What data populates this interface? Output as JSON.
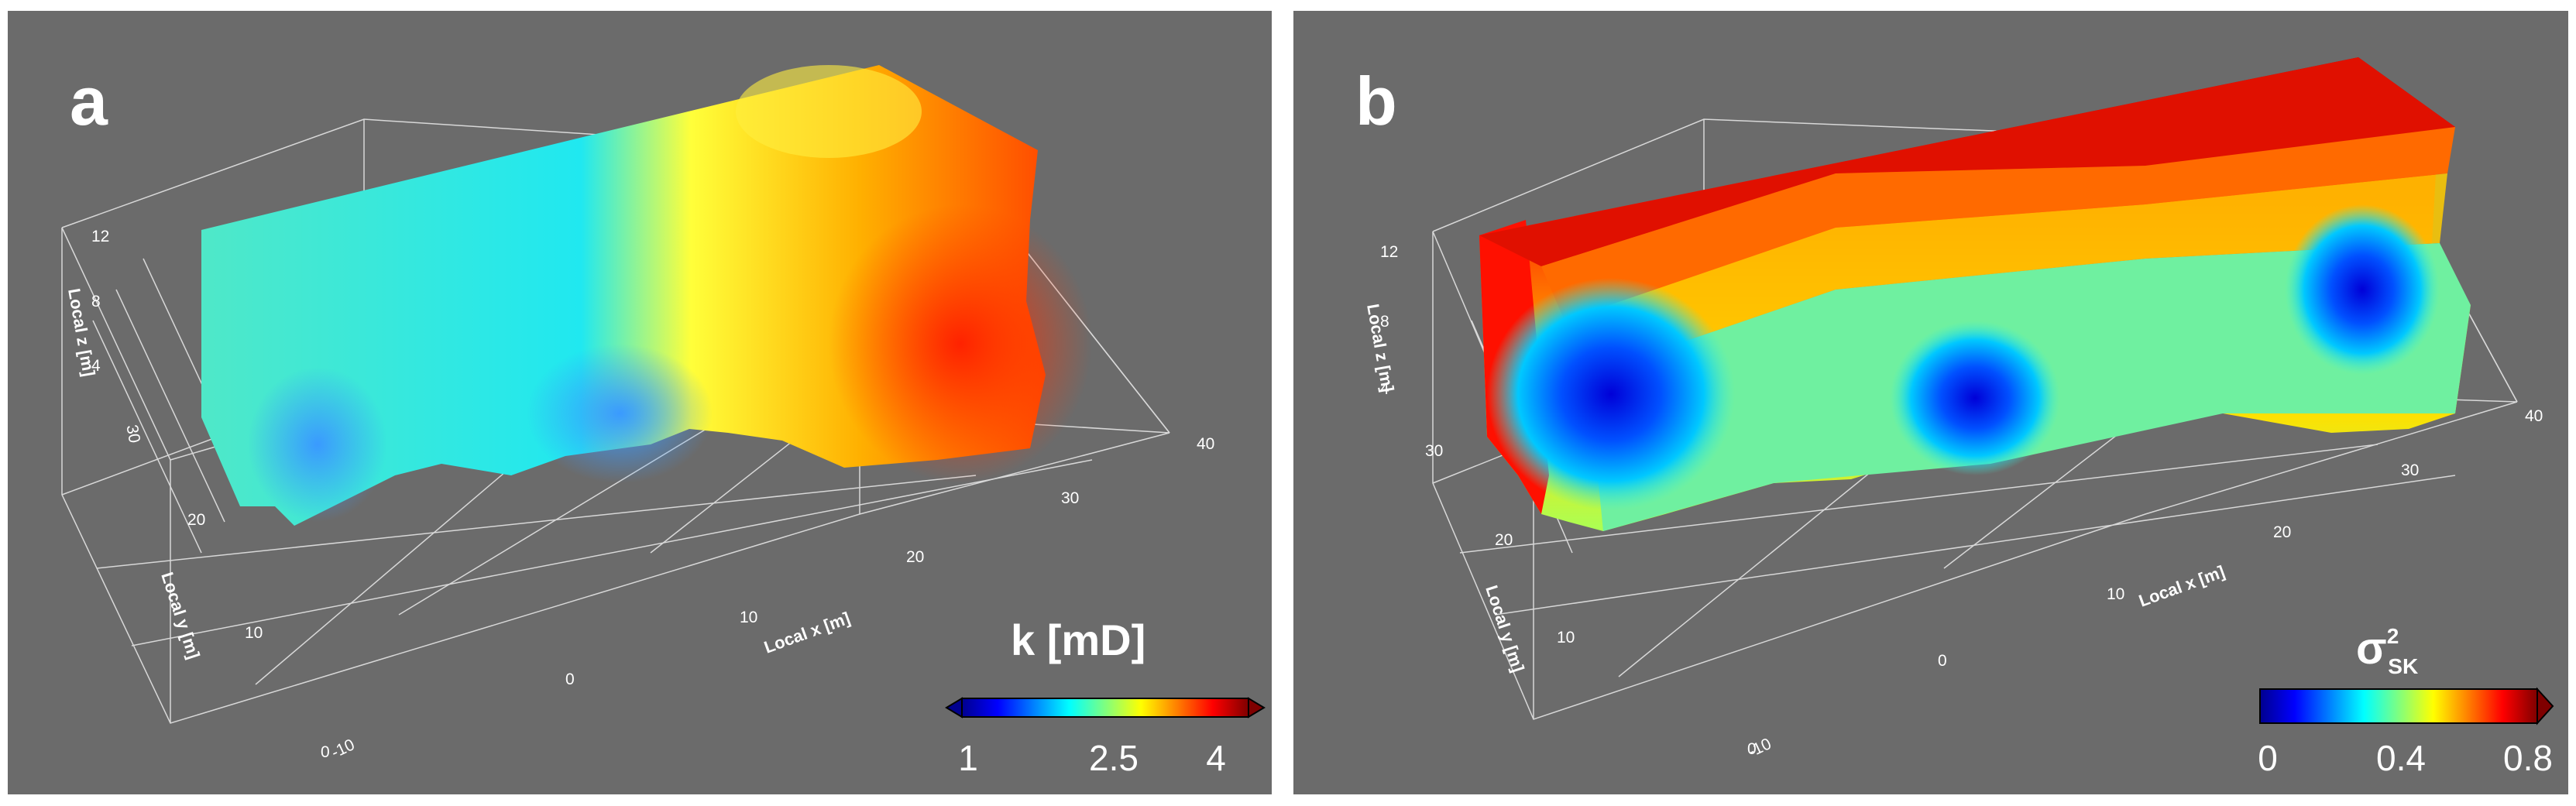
{
  "panels": [
    {
      "letter": "a",
      "axes": {
        "xlabel": "Local x [m]",
        "ylabel": "Local y [m]",
        "zlabel": "Local z [m]",
        "x_ticks": [
          "-10",
          "0",
          "10",
          "20",
          "30",
          "40"
        ],
        "y_ticks": [
          "0",
          "10",
          "20",
          "30"
        ],
        "z_ticks": [
          "4",
          "8",
          "12"
        ]
      },
      "colorbar": {
        "title": "k [mD]",
        "ticks": [
          "1",
          "2.5",
          "4"
        ],
        "extend": "both"
      }
    },
    {
      "letter": "b",
      "axes": {
        "xlabel": "Local x [m]",
        "ylabel": "Local y [m]",
        "zlabel": "Local z [m]",
        "x_ticks": [
          "-10",
          "0",
          "10",
          "20",
          "30",
          "40"
        ],
        "y_ticks": [
          "0",
          "10",
          "20",
          "30"
        ],
        "z_ticks": [
          "4",
          "8",
          "12"
        ]
      },
      "colorbar": {
        "title_symbol": "σ",
        "title_sup": "2",
        "title_sub": "SK",
        "ticks": [
          "0",
          "0.4",
          "0.8"
        ],
        "extend": "max"
      }
    }
  ],
  "colors": {
    "background": "#6b6b6b",
    "jet": [
      "#00008f",
      "#0000ff",
      "#007fff",
      "#00ffff",
      "#7fff7f",
      "#ffff00",
      "#ff7f00",
      "#ff0000",
      "#7f0000"
    ]
  }
}
